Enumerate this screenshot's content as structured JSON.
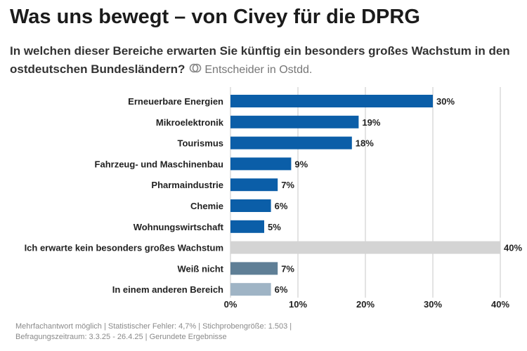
{
  "header": {
    "title": "Was uns bewegt – von Civey für die DPRG",
    "question": "In welchen dieser Bereiche erwarten Sie künftig ein besonders großes Wachstum in den ostdeutschen Bundesländern?",
    "audience": "Entscheider in Ostdd.",
    "audience_icon": "target-group-icon"
  },
  "chart_data": {
    "type": "bar",
    "orientation": "horizontal",
    "categories": [
      "Erneuerbare Energien",
      "Mikroelektronik",
      "Tourismus",
      "Fahrzeug- und Maschinenbau",
      "Pharmaindustrie",
      "Chemie",
      "Wohnungswirtschaft",
      "Ich erwarte kein besonders großes Wachstum",
      "Weiß nicht",
      "In einem anderen Bereich"
    ],
    "values": [
      30,
      19,
      18,
      9,
      7,
      6,
      5,
      40,
      7,
      6
    ],
    "value_labels": [
      "30%",
      "19%",
      "18%",
      "9%",
      "7%",
      "6%",
      "5%",
      "40%",
      "7%",
      "6%"
    ],
    "colors": [
      "#0b5ea8",
      "#0b5ea8",
      "#0b5ea8",
      "#0b5ea8",
      "#0b5ea8",
      "#0b5ea8",
      "#0b5ea8",
      "#d4d4d4",
      "#5f7f96",
      "#9fb4c5"
    ],
    "xlim": [
      0,
      40
    ],
    "x_ticks": [
      0,
      10,
      20,
      30,
      40
    ],
    "x_tick_labels": [
      "0%",
      "10%",
      "20%",
      "30%",
      "40%"
    ],
    "grid": true
  },
  "footer": {
    "line1": "Mehrfachantwort möglich | Statistischer Fehler: 4,7% | Stichprobengröße: 1.503 |",
    "line2": "Befragungszeitraum: 3.3.25 - 26.4.25 | Gerundete Ergebnisse"
  }
}
